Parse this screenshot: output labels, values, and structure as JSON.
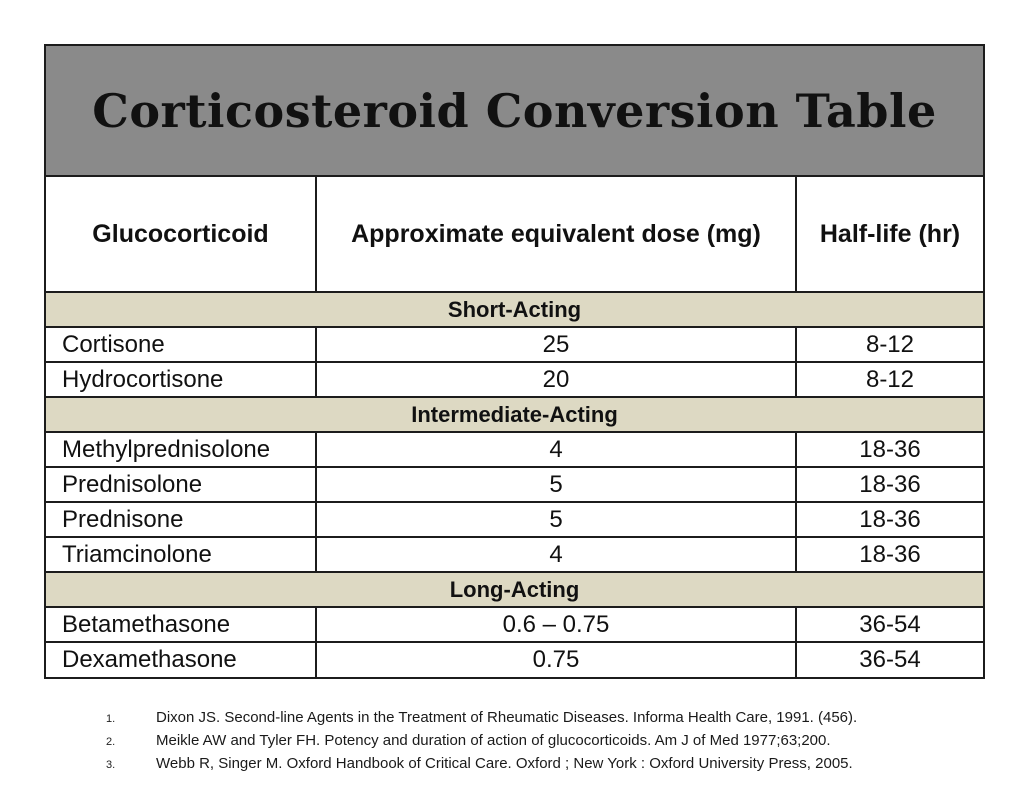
{
  "colors": {
    "title_band": "#8a8a8a",
    "section_band": "#ddd9c3",
    "border": "#1c1c1c",
    "background": "#ffffff"
  },
  "title": {
    "text": "Corticosteroid Conversion Table"
  },
  "table": {
    "columns": [
      "Glucocorticoid",
      "Approximate equivalent dose (mg)",
      "Half-life (hr)"
    ],
    "sections": [
      {
        "label": "Short-Acting",
        "rows": [
          {
            "drug": "Cortisone",
            "dose": "25",
            "half_life": "8-12"
          },
          {
            "drug": "Hydrocortisone",
            "dose": "20",
            "half_life": "8-12"
          }
        ]
      },
      {
        "label": "Intermediate-Acting",
        "rows": [
          {
            "drug": "Methylprednisolone",
            "dose": "4",
            "half_life": "18-36"
          },
          {
            "drug": "Prednisolone",
            "dose": "5",
            "half_life": "18-36"
          },
          {
            "drug": "Prednisone",
            "dose": "5",
            "half_life": "18-36"
          },
          {
            "drug": "Triamcinolone",
            "dose": "4",
            "half_life": "18-36"
          }
        ]
      },
      {
        "label": "Long-Acting",
        "rows": [
          {
            "drug": "Betamethasone",
            "dose": "0.6 – 0.75",
            "half_life": "36-54"
          },
          {
            "drug": "Dexamethasone",
            "dose": "0.75",
            "half_life": "36-54"
          }
        ]
      }
    ]
  },
  "footnotes": [
    {
      "num": "1.",
      "text": "Dixon JS. Second-line Agents in the Treatment of Rheumatic Diseases. Informa Health Care, 1991. (456)."
    },
    {
      "num": "2.",
      "text": "Meikle AW and Tyler FH. Potency and duration of action of glucocorticoids. Am J of Med 1977;63;200."
    },
    {
      "num": "3.",
      "text": "Webb R, Singer M. Oxford Handbook of Critical Care. Oxford ; New York : Oxford University Press, 2005."
    }
  ]
}
